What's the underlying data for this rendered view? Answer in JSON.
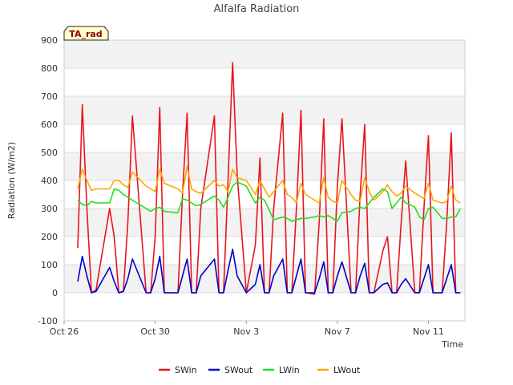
{
  "chart_data": {
    "type": "line",
    "title": "Alfalfa Radiation",
    "xlabel": "Time",
    "ylabel": "Radiation (W/m2)",
    "badge": "TA_rad",
    "xlim": [
      0,
      17.6
    ],
    "ylim": [
      -100,
      900
    ],
    "yticks": [
      -100,
      0,
      100,
      200,
      300,
      400,
      500,
      600,
      700,
      800,
      900
    ],
    "xticks": [
      {
        "label": "Oct 26",
        "day": 0
      },
      {
        "label": "Oct 30",
        "day": 4
      },
      {
        "label": "Nov 3",
        "day": 8
      },
      {
        "label": "Nov 7",
        "day": 12
      },
      {
        "label": "Nov 11",
        "day": 16
      }
    ],
    "x_days": [
      0.6,
      0.8,
      1.0,
      1.2,
      1.4,
      2.0,
      2.2,
      2.4,
      2.6,
      2.8,
      3.0,
      3.6,
      3.8,
      4.0,
      4.2,
      4.4,
      5.0,
      5.2,
      5.4,
      5.6,
      5.8,
      6.0,
      6.6,
      6.8,
      7.0,
      7.2,
      7.4,
      7.6,
      8.0,
      8.4,
      8.6,
      8.8,
      9.0,
      9.2,
      9.6,
      9.8,
      10.0,
      10.2,
      10.4,
      10.6,
      11.0,
      11.2,
      11.4,
      11.6,
      11.8,
      12.0,
      12.2,
      12.6,
      12.8,
      13.0,
      13.2,
      13.4,
      13.6,
      14.0,
      14.2,
      14.4,
      14.6,
      14.8,
      15.0,
      15.4,
      15.6,
      15.8,
      16.0,
      16.2,
      16.6,
      16.8,
      17.0,
      17.2,
      17.4
    ],
    "series": [
      {
        "name": "SWin",
        "color": "#e8141e",
        "values": [
          160,
          670,
          300,
          0,
          10,
          300,
          200,
          0,
          5,
          250,
          630,
          0,
          0,
          200,
          660,
          0,
          0,
          350,
          640,
          0,
          0,
          300,
          630,
          0,
          0,
          400,
          820,
          420,
          0,
          170,
          480,
          0,
          0,
          300,
          640,
          0,
          0,
          300,
          650,
          0,
          -5,
          250,
          620,
          0,
          0,
          380,
          620,
          0,
          0,
          350,
          600,
          0,
          0,
          150,
          200,
          0,
          0,
          250,
          470,
          0,
          0,
          300,
          560,
          0,
          0,
          250,
          570,
          0,
          0
        ]
      },
      {
        "name": "SWout",
        "color": "#0000cc",
        "values": [
          40,
          130,
          60,
          0,
          5,
          90,
          40,
          0,
          5,
          50,
          120,
          0,
          0,
          50,
          130,
          0,
          0,
          60,
          120,
          0,
          0,
          60,
          120,
          0,
          0,
          80,
          155,
          60,
          0,
          30,
          100,
          0,
          0,
          60,
          120,
          0,
          0,
          60,
          120,
          0,
          0,
          50,
          110,
          0,
          0,
          60,
          110,
          0,
          0,
          60,
          105,
          0,
          0,
          30,
          35,
          0,
          0,
          30,
          50,
          0,
          0,
          50,
          100,
          0,
          0,
          50,
          100,
          0,
          0
        ]
      },
      {
        "name": "LWin",
        "color": "#22dd22",
        "values": [
          330,
          315,
          310,
          325,
          320,
          320,
          370,
          365,
          350,
          340,
          330,
          300,
          290,
          300,
          305,
          290,
          285,
          335,
          330,
          320,
          310,
          315,
          345,
          330,
          305,
          340,
          380,
          395,
          380,
          320,
          340,
          330,
          295,
          260,
          270,
          265,
          255,
          260,
          265,
          265,
          270,
          275,
          270,
          275,
          265,
          255,
          285,
          290,
          300,
          305,
          300,
          320,
          340,
          370,
          360,
          300,
          320,
          340,
          320,
          305,
          270,
          260,
          300,
          305,
          265,
          265,
          270,
          270,
          300
        ]
      },
      {
        "name": "LWout",
        "color": "#ffa500",
        "values": [
          370,
          440,
          400,
          365,
          370,
          370,
          400,
          400,
          385,
          375,
          430,
          380,
          370,
          360,
          440,
          390,
          370,
          355,
          450,
          370,
          360,
          355,
          400,
          380,
          385,
          360,
          440,
          410,
          400,
          350,
          400,
          370,
          340,
          360,
          400,
          350,
          340,
          320,
          390,
          350,
          330,
          320,
          410,
          340,
          325,
          320,
          400,
          350,
          330,
          325,
          410,
          360,
          330,
          360,
          385,
          360,
          345,
          355,
          380,
          355,
          345,
          335,
          390,
          330,
          320,
          325,
          380,
          330,
          320
        ]
      }
    ]
  }
}
